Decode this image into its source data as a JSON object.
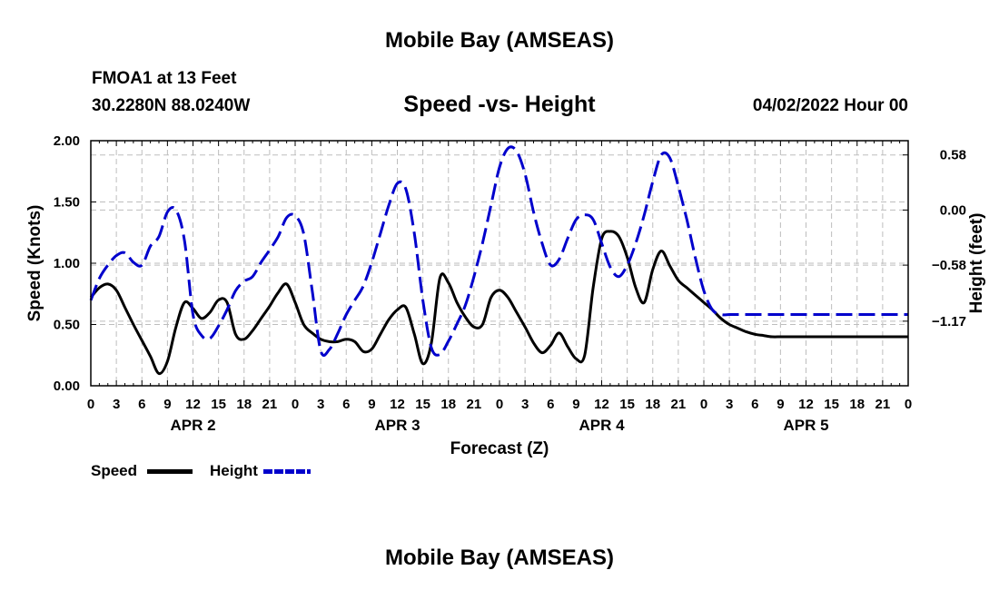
{
  "header": {
    "title": "Mobile Bay (AMSEAS)",
    "station": "FMOA1 at 13 Feet",
    "location": "30.2280N  88.0240W",
    "subtitle": "Speed -vs- Height",
    "datetime": "04/02/2022 Hour 00"
  },
  "footer": {
    "title": "Mobile Bay (AMSEAS)"
  },
  "legend": {
    "speed_label": "Speed",
    "height_label": "Height",
    "speed_color": "#000000",
    "height_color": "#0000cc"
  },
  "chart_data": {
    "type": "line",
    "title": "Speed -vs- Height",
    "xlabel": "Forecast (Z)",
    "ylabel": "Speed (Knots)",
    "y2label": "Height (feet)",
    "xlim": [
      0,
      96
    ],
    "ylim": [
      0,
      2.0
    ],
    "y2lim": [
      -1.85,
      0.73
    ],
    "y_ticks": [
      0.0,
      0.5,
      1.0,
      1.5,
      2.0
    ],
    "y_tick_labels": [
      "0.00",
      "0.50",
      "1.00",
      "1.50",
      "2.00"
    ],
    "y2_ticks": [
      0.58,
      0.0,
      -0.58,
      -1.17
    ],
    "y2_tick_labels": [
      "0.58",
      "0.00",
      "−0.58",
      "−1.17"
    ],
    "x_ticks": [
      0,
      3,
      6,
      9,
      12,
      15,
      18,
      21,
      24,
      27,
      30,
      33,
      36,
      39,
      42,
      45,
      48,
      51,
      54,
      57,
      60,
      63,
      66,
      69,
      72,
      75,
      78,
      81,
      84,
      87,
      90,
      93,
      96
    ],
    "x_tick_labels": [
      "0",
      "3",
      "6",
      "9",
      "12",
      "15",
      "18",
      "21",
      "0",
      "3",
      "6",
      "9",
      "12",
      "15",
      "18",
      "21",
      "0",
      "3",
      "6",
      "9",
      "12",
      "15",
      "18",
      "21",
      "0",
      "3",
      "6",
      "9",
      "12",
      "15",
      "18",
      "21",
      "0"
    ],
    "day_labels": [
      {
        "label": "APR 2",
        "x": 12
      },
      {
        "label": "APR 3",
        "x": 36
      },
      {
        "label": "APR 4",
        "x": 60
      },
      {
        "label": "APR 5",
        "x": 84
      }
    ],
    "series": [
      {
        "name": "Speed",
        "axis": "left",
        "color": "#000000",
        "dash": "solid",
        "x": [
          0,
          1,
          2,
          3,
          4,
          5,
          6,
          7,
          8,
          9,
          10,
          11,
          12,
          13,
          14,
          15,
          16,
          17,
          18,
          19,
          20,
          21,
          22,
          23,
          24,
          25,
          26,
          27,
          28,
          29,
          30,
          31,
          32,
          33,
          34,
          35,
          36,
          37,
          38,
          39,
          40,
          41,
          42,
          43,
          44,
          45,
          46,
          47,
          48,
          49,
          50,
          51,
          52,
          53,
          54,
          55,
          56,
          57,
          58,
          59,
          60,
          61,
          62,
          63,
          64,
          65,
          66,
          67,
          68,
          69,
          70,
          71,
          72,
          73,
          74,
          75,
          76,
          77,
          78,
          79,
          80,
          81,
          82,
          83,
          84,
          85,
          86,
          87,
          88,
          89,
          90,
          91,
          92,
          93,
          94,
          95,
          96
        ],
        "values": [
          0.72,
          0.8,
          0.83,
          0.78,
          0.64,
          0.5,
          0.37,
          0.24,
          0.1,
          0.2,
          0.48,
          0.68,
          0.63,
          0.55,
          0.6,
          0.7,
          0.68,
          0.42,
          0.38,
          0.45,
          0.55,
          0.65,
          0.76,
          0.83,
          0.68,
          0.5,
          0.43,
          0.38,
          0.36,
          0.36,
          0.38,
          0.36,
          0.28,
          0.3,
          0.42,
          0.54,
          0.62,
          0.64,
          0.42,
          0.18,
          0.35,
          0.88,
          0.84,
          0.68,
          0.56,
          0.48,
          0.5,
          0.72,
          0.78,
          0.72,
          0.6,
          0.48,
          0.35,
          0.27,
          0.33,
          0.43,
          0.32,
          0.22,
          0.25,
          0.8,
          1.2,
          1.26,
          1.22,
          1.05,
          0.8,
          0.68,
          0.95,
          1.1,
          0.98,
          0.86,
          0.8,
          0.74,
          0.68,
          0.62,
          0.55,
          0.5,
          0.47,
          0.44,
          0.42,
          0.41,
          0.4,
          0.4,
          0.4,
          0.4,
          0.4,
          0.4,
          0.4,
          0.4,
          0.4,
          0.4,
          0.4,
          0.4,
          0.4,
          0.4,
          0.4,
          0.4,
          0.4
        ]
      },
      {
        "name": "Height",
        "axis": "right",
        "color": "#0000cc",
        "dash": "dashed",
        "x": [
          0,
          1,
          2,
          3,
          4,
          5,
          6,
          7,
          8,
          9,
          10,
          11,
          12,
          13,
          14,
          15,
          16,
          17,
          18,
          19,
          20,
          21,
          22,
          23,
          24,
          25,
          26,
          27,
          28,
          29,
          30,
          31,
          32,
          33,
          34,
          35,
          36,
          37,
          38,
          39,
          40,
          41,
          42,
          43,
          44,
          45,
          46,
          47,
          48,
          49,
          50,
          51,
          52,
          53,
          54,
          55,
          56,
          57,
          58,
          59,
          60,
          61,
          62,
          63,
          64,
          65,
          66,
          67,
          68,
          69,
          70,
          71,
          72,
          73,
          74,
          75,
          76,
          77,
          78,
          79,
          80,
          81,
          82,
          83,
          84,
          85,
          86,
          87,
          88,
          89,
          90,
          91,
          92,
          93,
          94,
          95,
          96
        ],
        "values": [
          -0.95,
          -0.72,
          -0.58,
          -0.48,
          -0.45,
          -0.55,
          -0.58,
          -0.38,
          -0.28,
          -0.02,
          0.0,
          -0.32,
          -1.1,
          -1.32,
          -1.35,
          -1.22,
          -1.05,
          -0.85,
          -0.75,
          -0.7,
          -0.55,
          -0.42,
          -0.28,
          -0.08,
          -0.06,
          -0.25,
          -0.85,
          -1.48,
          -1.47,
          -1.3,
          -1.1,
          -0.95,
          -0.8,
          -0.55,
          -0.25,
          0.05,
          0.28,
          0.22,
          -0.25,
          -0.95,
          -1.45,
          -1.52,
          -1.38,
          -1.2,
          -1.0,
          -0.7,
          -0.35,
          0.05,
          0.45,
          0.65,
          0.62,
          0.38,
          -0.02,
          -0.35,
          -0.58,
          -0.52,
          -0.3,
          -0.1,
          -0.05,
          -0.1,
          -0.35,
          -0.6,
          -0.7,
          -0.58,
          -0.35,
          -0.05,
          0.3,
          0.58,
          0.55,
          0.25,
          -0.1,
          -0.5,
          -0.85,
          -1.05,
          -1.1,
          -1.1,
          -1.1,
          -1.1,
          -1.1,
          -1.1,
          -1.1,
          -1.1,
          -1.1,
          -1.1,
          -1.1,
          -1.1,
          -1.1,
          -1.1,
          -1.1,
          -1.1,
          -1.1,
          -1.1,
          -1.1,
          -1.1,
          -1.1,
          -1.1,
          -1.1
        ]
      }
    ]
  }
}
